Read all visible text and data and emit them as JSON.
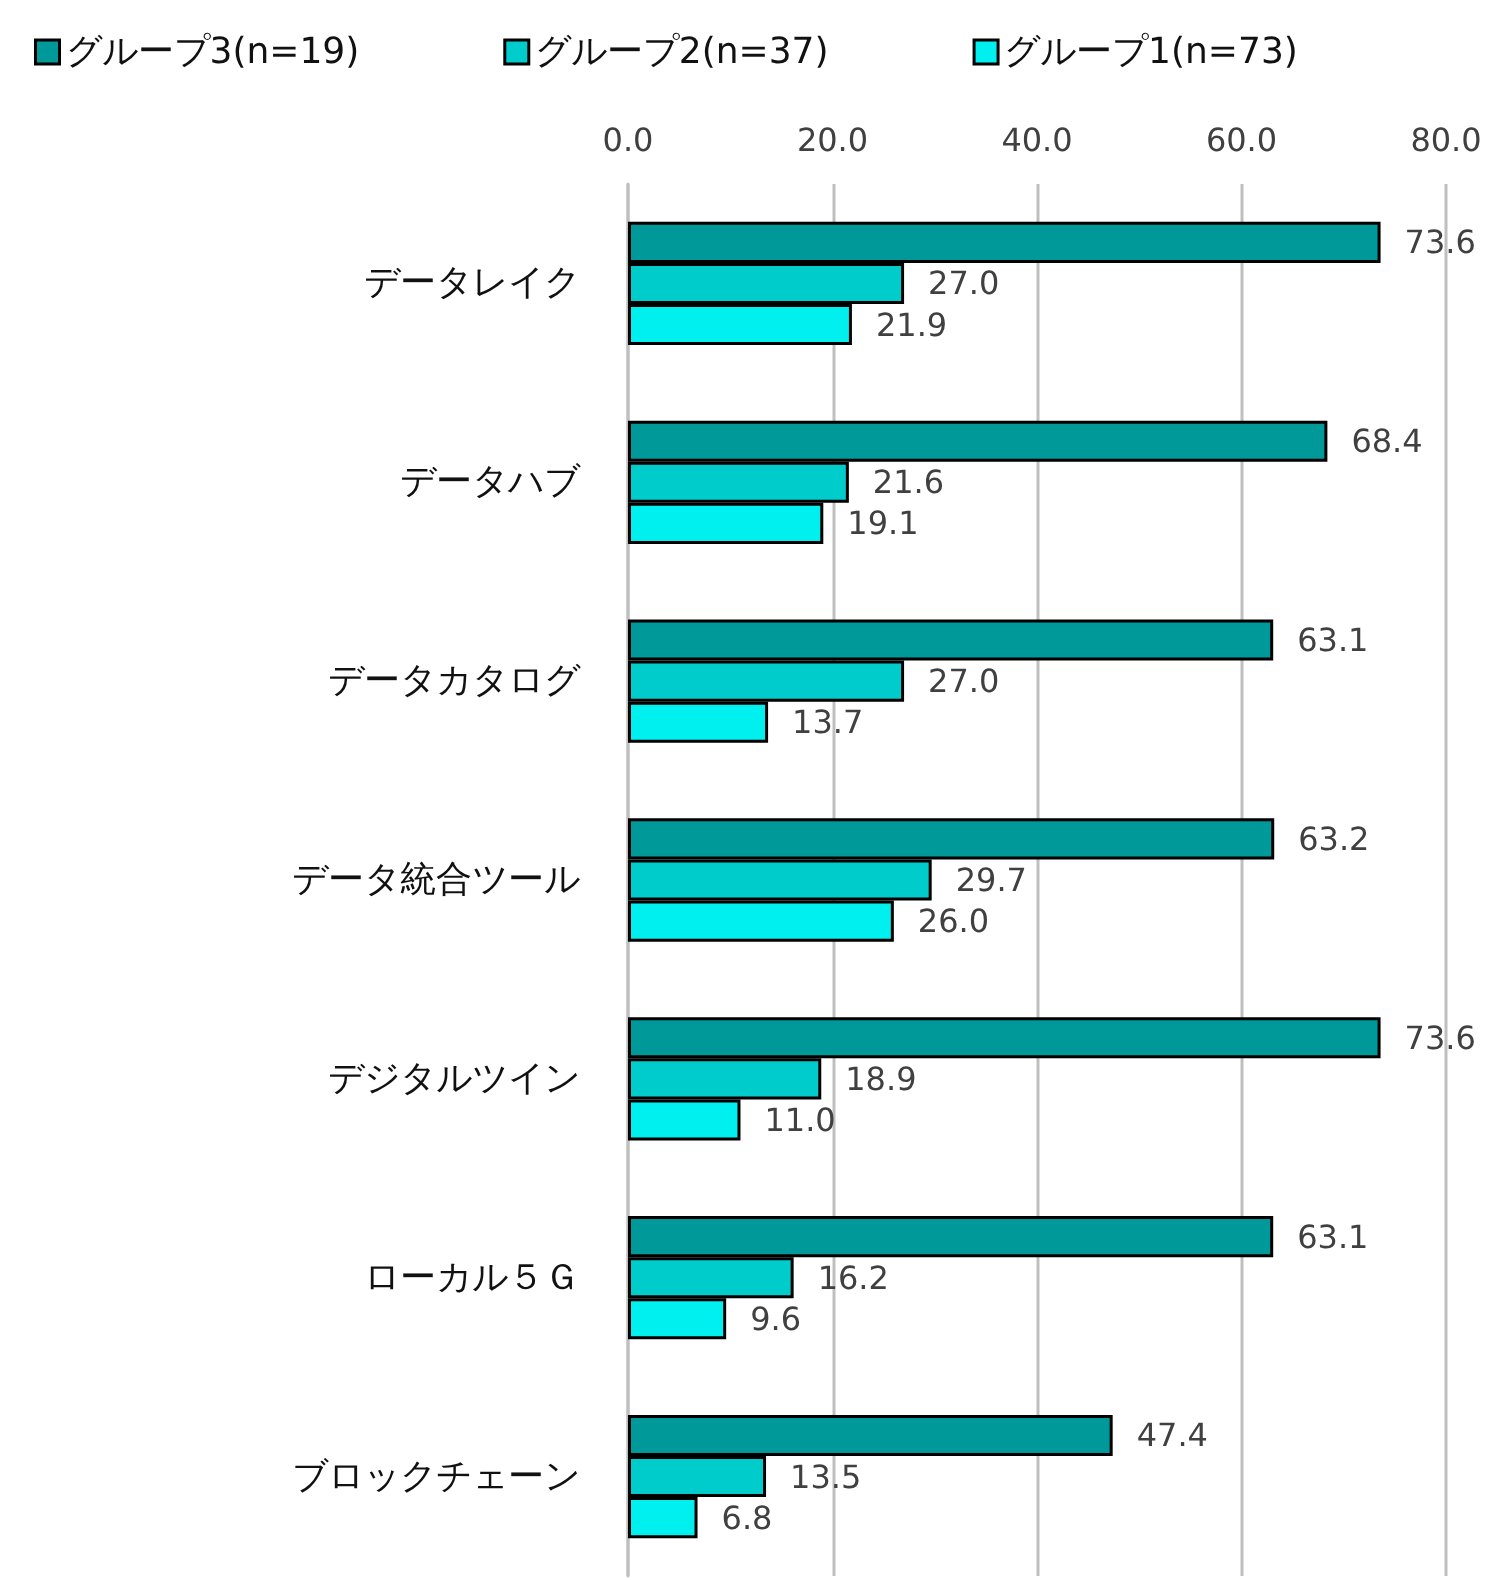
{
  "chart_data": {
    "type": "bar",
    "orientation": "horizontal",
    "categories": [
      "データレイク",
      "データハブ",
      "データカタログ",
      "データ統合ツール",
      "デジタルツイン",
      "ローカル５Ｇ",
      "ブロックチェーン"
    ],
    "series": [
      {
        "name": "グループ3(n=19)",
        "color": "#009999",
        "values": [
          73.6,
          68.4,
          63.1,
          63.2,
          73.6,
          63.1,
          47.4
        ],
        "value_labels": [
          "73.6",
          "68.4",
          "63.1",
          "63.2",
          "73.6",
          "63.1",
          "47.4"
        ]
      },
      {
        "name": "グループ2(n=37)",
        "color": "#00cccc",
        "values": [
          27.0,
          21.6,
          27.0,
          29.7,
          18.9,
          16.2,
          13.5
        ],
        "value_labels": [
          "27.0",
          "21.6",
          "27.0",
          "29.7",
          "18.9",
          "16.2",
          "13.5"
        ]
      },
      {
        "name": "グループ1(n=73)",
        "color": "#00efef",
        "values": [
          21.9,
          19.1,
          13.7,
          26.0,
          11.0,
          9.6,
          6.8
        ],
        "value_labels": [
          "21.9",
          "19.1",
          "13.7",
          "26.0",
          "11.0",
          "9.6",
          "6.8"
        ]
      }
    ],
    "xlim": [
      0,
      80
    ],
    "xticks": [
      {
        "value": 0,
        "label": "0.0"
      },
      {
        "value": 20,
        "label": "20.0"
      },
      {
        "value": 40,
        "label": "40.0"
      },
      {
        "value": 60,
        "label": "60.0"
      },
      {
        "value": 80,
        "label": "80.0"
      }
    ],
    "grid": "x",
    "legend": "top left"
  }
}
